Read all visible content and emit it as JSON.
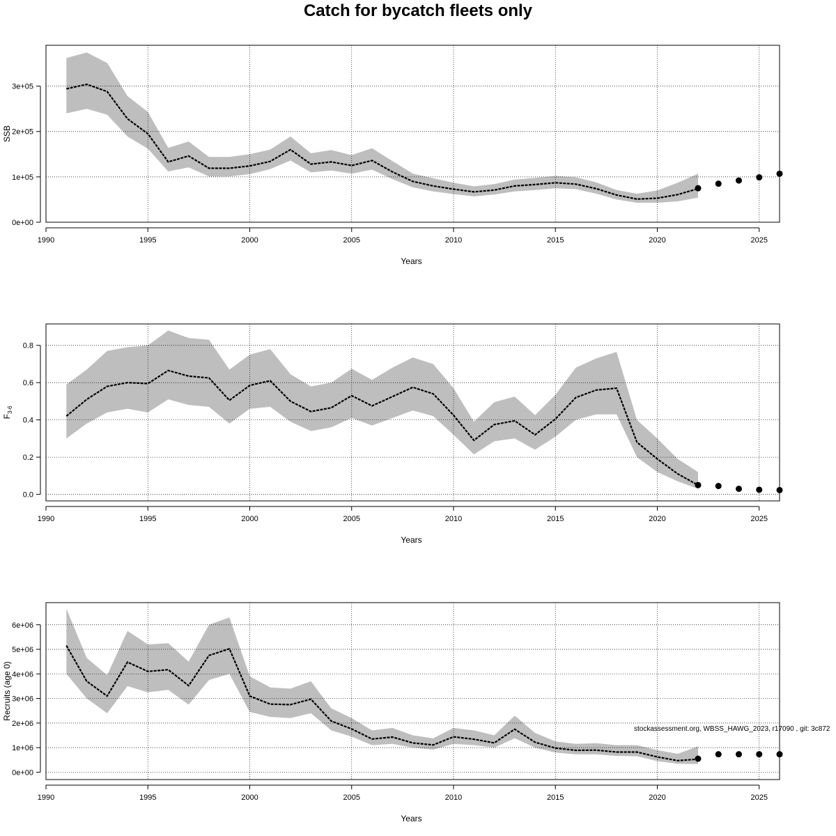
{
  "title": "Catch for bycatch fleets only",
  "footnote": "stockassessment.org, WBSS_HAWG_2023, r17090 , git: 3c872",
  "colors": {
    "band": "#bebebe",
    "line": "#000000",
    "grid": "#000000",
    "axis": "#000000"
  },
  "chart_data": [
    {
      "type": "line",
      "ylabel": "SSB",
      "xlabel": "Years",
      "xlim": [
        1990,
        2026
      ],
      "ylim": [
        0,
        390000
      ],
      "x_ticks": [
        1990,
        1995,
        2000,
        2005,
        2010,
        2015,
        2020,
        2025
      ],
      "y_ticks": [
        0,
        100000,
        200000,
        300000
      ],
      "y_tick_labels": [
        "0e+00",
        "1e+05",
        "2e+05",
        "3e+05"
      ],
      "grid": true,
      "x": [
        1991,
        1992,
        1993,
        1994,
        1995,
        1996,
        1997,
        1998,
        1999,
        2000,
        2001,
        2002,
        2003,
        2004,
        2005,
        2006,
        2007,
        2008,
        2009,
        2010,
        2011,
        2012,
        2013,
        2014,
        2015,
        2016,
        2017,
        2018,
        2019,
        2020,
        2021,
        2022
      ],
      "estimate": [
        294000,
        304000,
        288000,
        228000,
        195000,
        133000,
        146000,
        119000,
        119000,
        124000,
        134000,
        160000,
        128000,
        133000,
        125000,
        136000,
        111000,
        90000,
        80000,
        73000,
        67000,
        71000,
        80000,
        83000,
        87000,
        84000,
        74000,
        60000,
        51000,
        53000,
        61000,
        74000
      ],
      "lower": [
        240000,
        250000,
        237000,
        189000,
        162000,
        112000,
        121000,
        101000,
        101000,
        106000,
        117000,
        136000,
        110000,
        114000,
        107000,
        116000,
        95000,
        77000,
        68000,
        62000,
        57000,
        61000,
        68000,
        71000,
        75000,
        73000,
        63000,
        50000,
        43000,
        43000,
        46000,
        54000
      ],
      "upper": [
        362000,
        374000,
        351000,
        278000,
        243000,
        164000,
        178000,
        144000,
        144000,
        150000,
        160000,
        189000,
        152000,
        159000,
        148000,
        163000,
        135000,
        107000,
        97000,
        87000,
        79000,
        84000,
        94000,
        98000,
        102000,
        99000,
        88000,
        71000,
        63000,
        70000,
        87000,
        107000
      ],
      "projection": {
        "x": [
          2022,
          2023,
          2024,
          2025,
          2026
        ],
        "values": [
          75000,
          85000,
          92000,
          99000,
          107000
        ]
      }
    },
    {
      "type": "line",
      "ylabel": "F3-6",
      "xlabel": "Years",
      "xlim": [
        1990,
        2026
      ],
      "ylim": [
        -0.035,
        0.915
      ],
      "x_ticks": [
        1990,
        1995,
        2000,
        2005,
        2010,
        2015,
        2020,
        2025
      ],
      "y_ticks": [
        0,
        0.2,
        0.4,
        0.6,
        0.8
      ],
      "y_tick_labels": [
        "0.0",
        "0.2",
        "0.4",
        "0.6",
        "0.8"
      ],
      "grid": true,
      "x": [
        1991,
        1992,
        1993,
        1994,
        1995,
        1996,
        1997,
        1998,
        1999,
        2000,
        2001,
        2002,
        2003,
        2004,
        2005,
        2006,
        2007,
        2008,
        2009,
        2010,
        2011,
        2012,
        2013,
        2014,
        2015,
        2016,
        2017,
        2018,
        2019,
        2020,
        2021,
        2022
      ],
      "estimate": [
        0.42,
        0.51,
        0.58,
        0.6,
        0.595,
        0.665,
        0.635,
        0.625,
        0.505,
        0.585,
        0.61,
        0.5,
        0.445,
        0.465,
        0.53,
        0.475,
        0.525,
        0.575,
        0.54,
        0.425,
        0.29,
        0.375,
        0.395,
        0.32,
        0.405,
        0.52,
        0.56,
        0.57,
        0.28,
        0.19,
        0.11,
        0.05
      ],
      "lower": [
        0.3,
        0.38,
        0.44,
        0.46,
        0.44,
        0.51,
        0.48,
        0.47,
        0.38,
        0.46,
        0.47,
        0.39,
        0.34,
        0.36,
        0.41,
        0.37,
        0.41,
        0.45,
        0.42,
        0.32,
        0.215,
        0.285,
        0.3,
        0.24,
        0.31,
        0.4,
        0.43,
        0.43,
        0.2,
        0.12,
        0.07,
        0.03
      ],
      "upper": [
        0.59,
        0.67,
        0.77,
        0.79,
        0.8,
        0.88,
        0.84,
        0.83,
        0.67,
        0.75,
        0.78,
        0.645,
        0.58,
        0.6,
        0.675,
        0.615,
        0.68,
        0.735,
        0.7,
        0.57,
        0.39,
        0.495,
        0.525,
        0.425,
        0.535,
        0.68,
        0.73,
        0.765,
        0.4,
        0.3,
        0.19,
        0.12
      ],
      "projection": {
        "x": [
          2022,
          2023,
          2024,
          2025,
          2026
        ],
        "values": [
          0.05,
          0.045,
          0.03,
          0.025,
          0.023
        ]
      }
    },
    {
      "type": "line",
      "ylabel": "Recruits (age 0)",
      "xlabel": "Years",
      "xlim": [
        1990,
        2026
      ],
      "ylim": [
        -300000,
        6900000
      ],
      "x_ticks": [
        1990,
        1995,
        2000,
        2005,
        2010,
        2015,
        2020,
        2025
      ],
      "y_ticks": [
        0,
        1000000,
        2000000,
        3000000,
        4000000,
        5000000,
        6000000
      ],
      "y_tick_labels": [
        "0e+00",
        "1e+06",
        "2e+06",
        "3e+06",
        "4e+06",
        "5e+06",
        "6e+06"
      ],
      "grid": true,
      "x": [
        1991,
        1992,
        1993,
        1994,
        1995,
        1996,
        1997,
        1998,
        1999,
        2000,
        2001,
        2002,
        2003,
        2004,
        2005,
        2006,
        2007,
        2008,
        2009,
        2010,
        2011,
        2012,
        2013,
        2014,
        2015,
        2016,
        2017,
        2018,
        2019,
        2020,
        2021,
        2022
      ],
      "estimate": [
        5150000,
        3700000,
        3100000,
        4480000,
        4100000,
        4170000,
        3520000,
        4750000,
        5020000,
        3100000,
        2770000,
        2750000,
        2970000,
        2080000,
        1760000,
        1350000,
        1430000,
        1190000,
        1110000,
        1440000,
        1340000,
        1190000,
        1750000,
        1220000,
        980000,
        890000,
        900000,
        820000,
        820000,
        620000,
        470000,
        530000
      ],
      "lower": [
        4000000,
        3000000,
        2400000,
        3500000,
        3250000,
        3350000,
        2750000,
        3750000,
        4000000,
        2450000,
        2250000,
        2200000,
        2400000,
        1700000,
        1450000,
        1100000,
        1150000,
        1000000,
        920000,
        1150000,
        1100000,
        1000000,
        1380000,
        1000000,
        800000,
        730000,
        730000,
        660000,
        650000,
        450000,
        340000,
        330000
      ],
      "upper": [
        6650000,
        4650000,
        3950000,
        5750000,
        5200000,
        5250000,
        4500000,
        6000000,
        6300000,
        3900000,
        3450000,
        3400000,
        3700000,
        2600000,
        2200000,
        1700000,
        1800000,
        1500000,
        1380000,
        1800000,
        1700000,
        1500000,
        2300000,
        1600000,
        1250000,
        1150000,
        1180000,
        1100000,
        1100000,
        900000,
        750000,
        1050000
      ],
      "projection": {
        "x": [
          2022,
          2023,
          2024,
          2025,
          2026
        ],
        "values": [
          550000,
          730000,
          730000,
          730000,
          730000
        ]
      }
    }
  ]
}
